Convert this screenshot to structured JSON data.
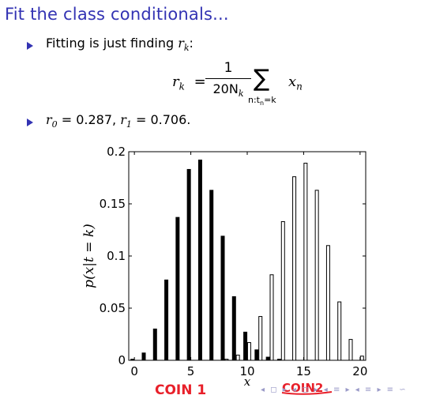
{
  "slide": {
    "title": "Fit the class conditionals...",
    "bullet1_text": "Fitting is just finding",
    "bullet1_var": "r",
    "bullet1_sub": "k",
    "bullet1_colon": ":",
    "bullet2_r0_sub": "0",
    "bullet2_r0_val": " = 0.287, ",
    "bullet2_r1_sub": "1",
    "bullet2_r1_val": " = 0.706."
  },
  "equation": {
    "lhs": "r",
    "lhs_sub": "k",
    "equals": "=",
    "numerator": "1",
    "denominator": "20N",
    "denominator_sub": "k",
    "sum_symbol": "∑",
    "sum_index": "n:t",
    "sum_index_sub": "n",
    "sum_index_rest": "=k",
    "term": "x",
    "term_sub": "n"
  },
  "chart_data": {
    "type": "bar",
    "x": [
      0,
      1,
      2,
      3,
      4,
      5,
      6,
      7,
      8,
      9,
      10,
      11,
      12,
      13,
      14,
      15,
      16,
      17,
      18,
      19,
      20
    ],
    "series": [
      {
        "values": [
          0.001,
          0.007,
          0.03,
          0.077,
          0.137,
          0.183,
          0.192,
          0.163,
          0.119,
          0.061,
          0.027,
          0.01,
          0.003,
          0.001,
          0,
          0,
          0,
          0,
          0,
          0,
          0
        ],
        "color": "#000000",
        "fill": "filled"
      },
      {
        "values": [
          0,
          0,
          0,
          0,
          0,
          0,
          0,
          0,
          0.001,
          0.005,
          0.017,
          0.042,
          0.082,
          0.133,
          0.176,
          0.189,
          0.163,
          0.11,
          0.056,
          0.02,
          0.004
        ],
        "color": "#000000",
        "fill": "hollow"
      }
    ],
    "xlabel": "x",
    "ylabel": "p(x|t = k)",
    "xlim": [
      -0.5,
      20.5
    ],
    "ylim": [
      0,
      0.2
    ],
    "xticks": [
      "0",
      "5",
      "10",
      "15",
      "20"
    ],
    "yticks": [
      "0",
      "0.05",
      "0.1",
      "0.15",
      "0.2"
    ],
    "grid": false
  },
  "annotations": {
    "coin1": "COIN 1",
    "coin2": "COIN2",
    "color": "#e8202a"
  },
  "nav_symbols": "◂ ◻ ▸ ◂ ◻ ▸ ◂ ≡ ▸ ◂ ≡ ▸ ≡ ∽"
}
